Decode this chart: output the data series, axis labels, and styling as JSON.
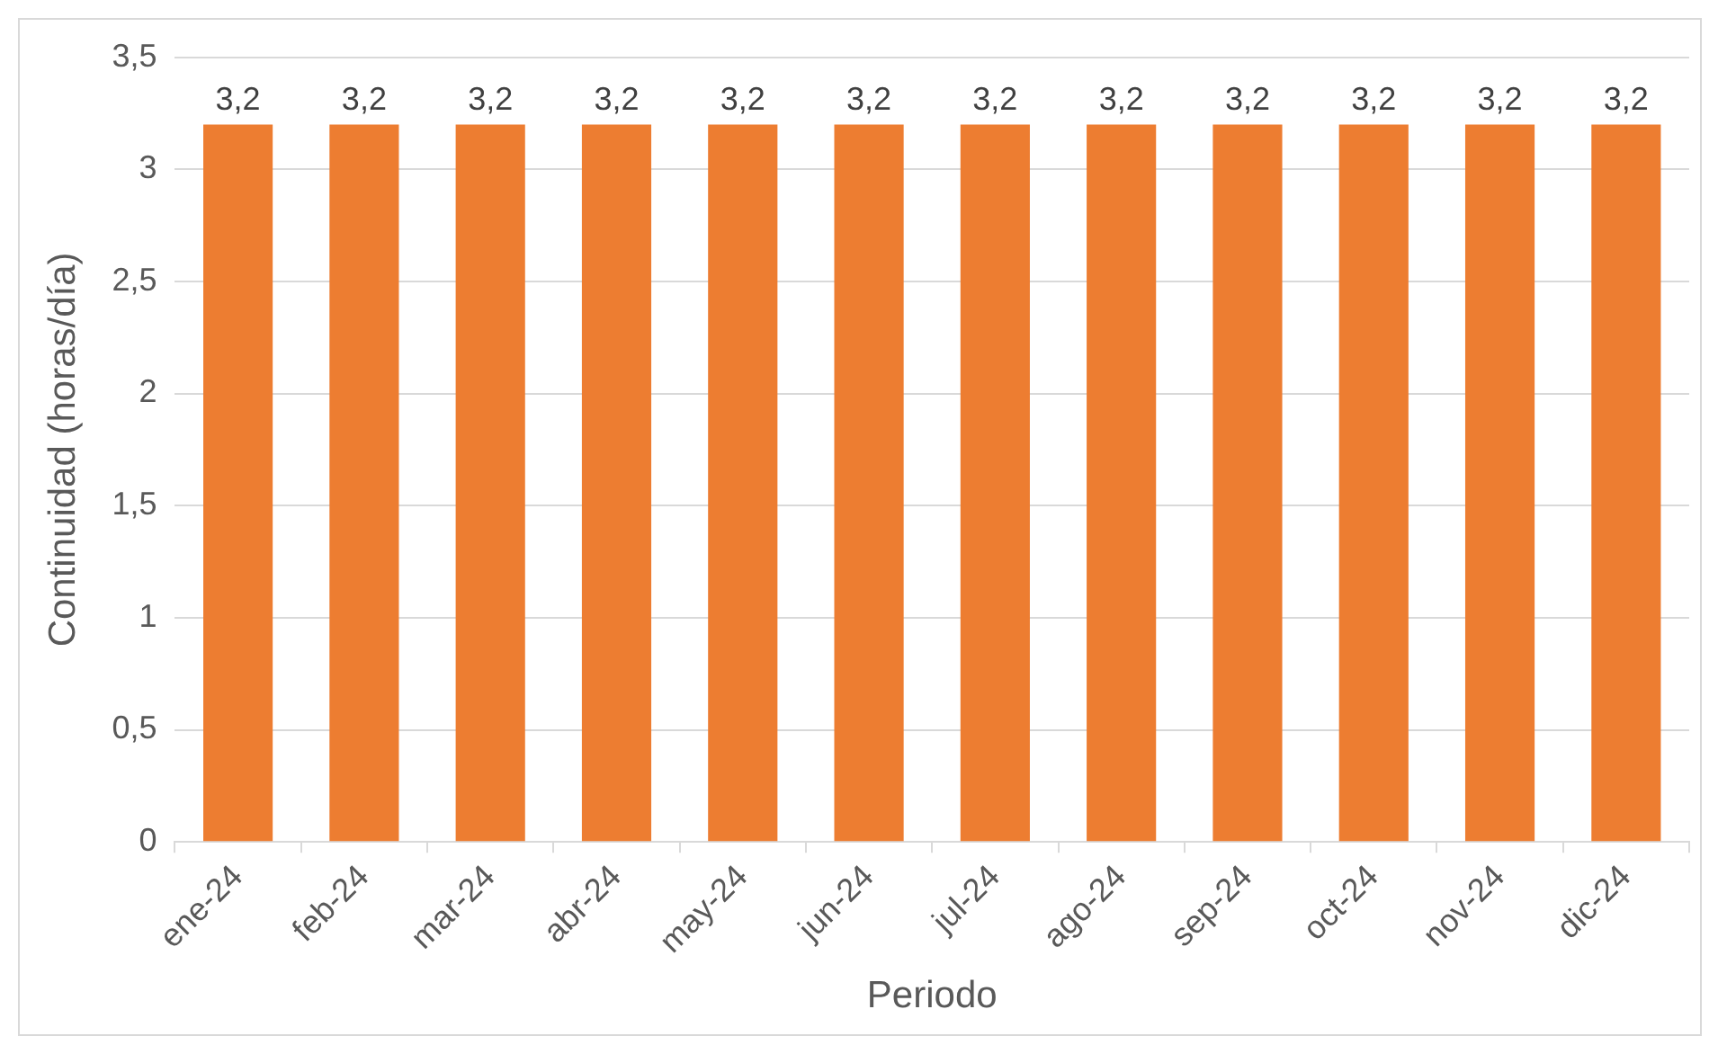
{
  "chart_data": {
    "type": "bar",
    "xlabel": "Periodo",
    "ylabel": "Continuidad (horas/día)",
    "categories": [
      "ene-24",
      "feb-24",
      "mar-24",
      "abr-24",
      "may-24",
      "jun-24",
      "jul-24",
      "ago-24",
      "sep-24",
      "oct-24",
      "nov-24",
      "dic-24"
    ],
    "values": [
      3.2,
      3.2,
      3.2,
      3.2,
      3.2,
      3.2,
      3.2,
      3.2,
      3.2,
      3.2,
      3.2,
      3.2
    ],
    "value_labels": [
      "3,2",
      "3,2",
      "3,2",
      "3,2",
      "3,2",
      "3,2",
      "3,2",
      "3,2",
      "3,2",
      "3,2",
      "3,2",
      "3,2"
    ],
    "color": "#ed7d31",
    "ylim": [
      0,
      3.5
    ],
    "yticks": [
      0,
      {
        "value": 0.5,
        "label": "0,5"
      },
      1,
      {
        "value": 1.5,
        "label": "1,5"
      },
      2,
      {
        "value": 2.5,
        "label": "2,5"
      },
      3,
      {
        "value": 3.5,
        "label": "3,5"
      }
    ],
    "grid": "y"
  }
}
